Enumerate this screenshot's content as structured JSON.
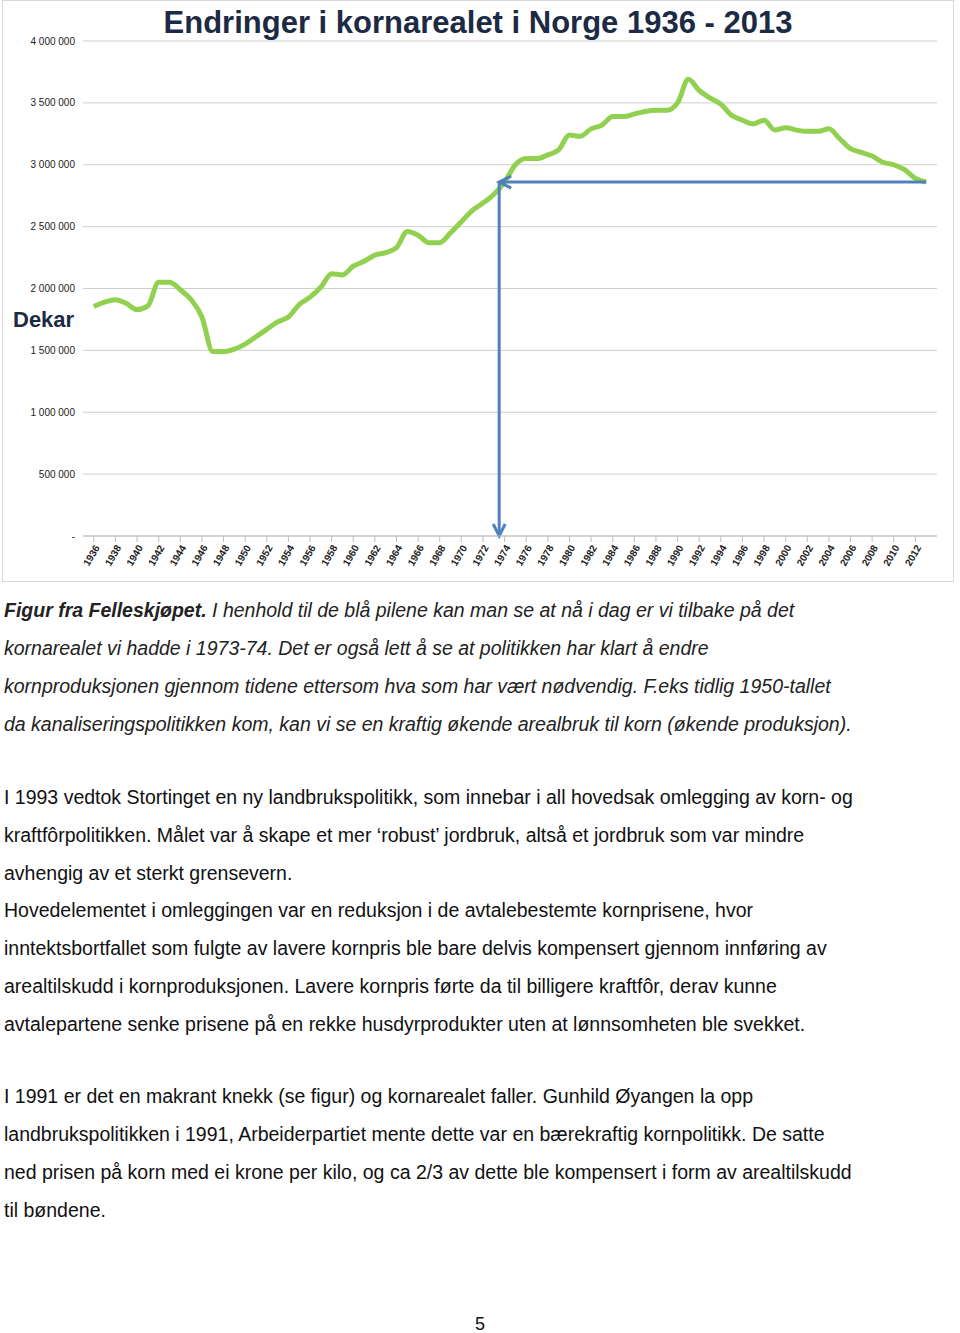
{
  "chart_data": {
    "type": "line",
    "title": "Endringer i kornarealet i Norge 1936 - 2013",
    "y_label": "Dekar",
    "color": "#92d050",
    "grid": true,
    "x": [
      1936,
      1937,
      1938,
      1939,
      1940,
      1941,
      1942,
      1943,
      1944,
      1945,
      1946,
      1947,
      1948,
      1949,
      1950,
      1951,
      1952,
      1953,
      1954,
      1955,
      1956,
      1957,
      1958,
      1959,
      1960,
      1961,
      1962,
      1963,
      1964,
      1965,
      1966,
      1967,
      1968,
      1969,
      1970,
      1971,
      1972,
      1973,
      1974,
      1975,
      1976,
      1977,
      1978,
      1979,
      1980,
      1981,
      1982,
      1983,
      1984,
      1985,
      1986,
      1987,
      1988,
      1989,
      1990,
      1991,
      1992,
      1993,
      1994,
      1995,
      1996,
      1997,
      1998,
      1999,
      2000,
      2001,
      2002,
      2003,
      2004,
      2005,
      2006,
      2007,
      2008,
      2009,
      2010,
      2011,
      2012,
      2013
    ],
    "values": [
      1855000,
      1890000,
      1910000,
      1880000,
      1830000,
      1860000,
      2050000,
      2050000,
      1990000,
      1910000,
      1770000,
      1490000,
      1490000,
      1510000,
      1550000,
      1610000,
      1670000,
      1730000,
      1770000,
      1870000,
      1930000,
      2010000,
      2120000,
      2110000,
      2180000,
      2220000,
      2270000,
      2290000,
      2330000,
      2460000,
      2430000,
      2370000,
      2370000,
      2450000,
      2540000,
      2630000,
      2690000,
      2760000,
      2860000,
      3000000,
      3050000,
      3050000,
      3080000,
      3120000,
      3240000,
      3230000,
      3290000,
      3320000,
      3390000,
      3390000,
      3410000,
      3430000,
      3440000,
      3440000,
      3500000,
      3690000,
      3600000,
      3540000,
      3490000,
      3400000,
      3360000,
      3330000,
      3360000,
      3280000,
      3300000,
      3280000,
      3270000,
      3270000,
      3290000,
      3210000,
      3130000,
      3100000,
      3070000,
      3020000,
      3000000,
      2960000,
      2890000,
      2860000
    ],
    "xlim": [
      1935,
      2014
    ],
    "xticks": [
      1936,
      1938,
      1940,
      1942,
      1944,
      1946,
      1948,
      1950,
      1952,
      1954,
      1956,
      1958,
      1960,
      1962,
      1964,
      1966,
      1968,
      1970,
      1972,
      1974,
      1976,
      1978,
      1980,
      1982,
      1984,
      1986,
      1988,
      1990,
      1992,
      1994,
      1996,
      1998,
      2000,
      2002,
      2004,
      2006,
      2008,
      2010,
      2012
    ],
    "ylim": [
      0,
      4000000
    ],
    "yticks": [
      {
        "value": 0,
        "label": "-"
      },
      {
        "value": 500000,
        "label": "500 000"
      },
      {
        "value": 1000000,
        "label": "1 000 000"
      },
      {
        "value": 1500000,
        "label": "1 500 000"
      },
      {
        "value": 2000000,
        "label": "2 000 000"
      },
      {
        "value": 2500000,
        "label": "2 500 000"
      },
      {
        "value": 3000000,
        "label": "3 000 000"
      },
      {
        "value": 3500000,
        "label": "3 500 000"
      },
      {
        "value": 4000000,
        "label": "4 000 000"
      }
    ],
    "arrow": {
      "x": 1973.5,
      "y": 2860000,
      "color": "#4f81bd"
    }
  },
  "caption": {
    "lead": "Figur fra Felleskjøpet.",
    "lines": [
      "I henhold til de blå pilene kan man se at nå i dag er vi tilbake på det",
      "kornarealet vi hadde i 1973-74. Det er også lett å se at politikken har klart å endre",
      "kornproduksjonen gjennom tidene ettersom hva som har vært nødvendig. F.eks tidlig 1950-tallet",
      "da kanaliseringspolitikken kom, kan vi se en kraftig økende arealbruk til korn (økende produksjon)."
    ]
  },
  "paragraphs": [
    [
      "I 1993 vedtok Stortinget en ny landbrukspolitikk, som innebar i all hovedsak omlegging av korn- og",
      "kraftfôrpolitikken. Målet var å skape et mer ‘robust’ jordbruk, altså et jordbruk som var mindre",
      "avhengig av et sterkt grensevern."
    ],
    [
      "Hovedelementet i omleggingen var en reduksjon i de avtalebestemte kornprisene, hvor",
      "inntektsbortfallet som fulgte av lavere kornpris ble bare delvis kompensert gjennom innføring av",
      "arealtilskudd i kornproduksjonen. Lavere kornpris førte da til billigere kraftfôr, derav kunne",
      "avtalepartene senke prisene på en rekke husdyrprodukter uten at lønnsomheten ble svekket."
    ],
    [
      "I 1991 er det en makrant knekk (se figur) og kornarealet faller. Gunhild Øyangen la opp",
      "landbrukspolitikken i 1991, Arbeiderpartiet mente dette var en bærekraftig kornpolitikk. De satte",
      "ned prisen på korn med ei krone per kilo, og ca 2/3 av dette ble kompensert i form av arealtilskudd",
      "til bøndene."
    ]
  ],
  "page_number": "5"
}
